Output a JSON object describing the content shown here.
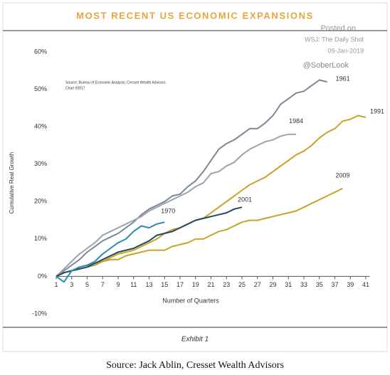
{
  "chart_data": {
    "type": "line",
    "title": "MOST RECENT US ECONOMIC EXPANSIONS",
    "annotations": [
      "Posted on",
      "WSJ: The Daily Shot",
      "09-Jan-2019",
      "@SoberLook"
    ],
    "source_note": [
      "Source: Bureau of Economic Analysis; Cresset Wealth Advisors.",
      "Chart #0917"
    ],
    "x_label": "Number of Quarters",
    "y_label": "Cumulative Real Growth",
    "footer": "Exhibit 1",
    "caption": "Source: Jack Ablin, Cresset Wealth Advisors",
    "x": [
      1,
      2,
      3,
      4,
      5,
      6,
      7,
      8,
      9,
      10,
      11,
      12,
      13,
      14,
      15,
      16,
      17,
      18,
      19,
      20,
      21,
      22,
      23,
      24,
      25,
      26,
      27,
      28,
      29,
      30,
      31,
      32,
      33,
      34,
      35,
      36,
      37,
      38,
      39,
      40,
      41
    ],
    "xlim": [
      1,
      41.5
    ],
    "xticks": [
      1,
      3,
      5,
      7,
      9,
      11,
      13,
      15,
      17,
      19,
      21,
      23,
      25,
      27,
      29,
      31,
      33,
      35,
      37,
      39,
      41
    ],
    "ylim": [
      -10,
      60
    ],
    "yticks": [
      {
        "value": -10,
        "label": "-10%"
      },
      {
        "value": 0,
        "label": "0%"
      },
      {
        "value": 10,
        "label": "10%"
      },
      {
        "value": 20,
        "label": "20%"
      },
      {
        "value": 30,
        "label": "30%"
      },
      {
        "value": 40,
        "label": "40%"
      },
      {
        "value": 50,
        "label": "50%"
      },
      {
        "value": 60,
        "label": "60%"
      }
    ],
    "grid": false,
    "series": [
      {
        "name": "1961",
        "color": "#7d8896",
        "values": [
          0,
          1.5,
          3,
          4.5,
          6.5,
          8,
          9.5,
          10.5,
          11.5,
          13,
          14.5,
          16.5,
          18,
          19,
          20,
          21.5,
          22,
          24,
          25.5,
          28,
          31,
          34,
          35.5,
          36.5,
          38,
          39.5,
          39.5,
          41,
          43,
          46,
          47.5,
          49,
          49.5,
          51,
          52.5,
          52,
          null,
          null,
          null,
          null,
          null
        ]
      },
      {
        "name": "1984",
        "color": "#9aa3ae",
        "values": [
          0,
          2,
          4,
          6,
          7.5,
          9,
          11,
          12,
          13,
          14,
          15,
          16,
          17.5,
          18.5,
          19.5,
          20.5,
          21.5,
          22.5,
          24,
          25,
          27.5,
          28,
          29.5,
          30.5,
          32.5,
          34,
          35,
          36,
          36.5,
          37.5,
          38,
          38,
          null,
          null,
          null,
          null,
          null,
          null,
          null,
          null,
          null
        ]
      },
      {
        "name": "1991",
        "color": "#c9a226",
        "values": [
          0,
          1,
          1.5,
          2,
          2.5,
          3,
          4,
          5,
          6,
          6.5,
          7,
          8,
          9,
          10,
          11.5,
          12.5,
          13,
          14,
          15,
          15.5,
          17,
          18.5,
          20,
          21.5,
          23,
          24.5,
          25.5,
          26.5,
          28,
          29.5,
          31,
          32.5,
          33.5,
          35,
          37,
          38.5,
          39.5,
          41.5,
          42,
          43,
          42.5
        ]
      },
      {
        "name": "2009",
        "color": "#c9a226",
        "values": [
          0,
          1,
          1.5,
          2.5,
          3,
          3.5,
          4,
          4.5,
          4.5,
          5.5,
          6,
          6.5,
          7,
          7,
          7,
          8,
          8.5,
          9,
          10,
          10,
          11,
          12,
          12.5,
          13.5,
          14.5,
          15,
          15,
          15.5,
          16,
          16.5,
          17,
          17.5,
          18.5,
          19.5,
          20.5,
          21.5,
          22.5,
          23.5,
          null,
          null,
          null
        ]
      },
      {
        "name": "2001",
        "color": "#1f4a63",
        "values": [
          0,
          1,
          1.5,
          2,
          2.5,
          3.5,
          4.5,
          5.5,
          6.5,
          7,
          7.5,
          8.5,
          9.5,
          11,
          11.5,
          12,
          13,
          14,
          15,
          15.5,
          16,
          16.5,
          17,
          18,
          18.5,
          null,
          null,
          null,
          null,
          null,
          null,
          null,
          null,
          null,
          null,
          null,
          null,
          null,
          null,
          null,
          null
        ]
      },
      {
        "name": "1970",
        "color": "#2b8bb0",
        "values": [
          0,
          -1.5,
          1.5,
          2.5,
          3,
          4,
          6,
          7.5,
          9,
          10,
          12,
          13.5,
          13,
          14,
          14.5,
          null,
          null,
          null,
          null,
          null,
          null,
          null,
          null,
          null,
          null,
          null,
          null,
          null,
          null,
          null,
          null,
          null,
          null,
          null,
          null,
          null,
          null,
          null,
          null,
          null,
          null
        ]
      }
    ]
  }
}
